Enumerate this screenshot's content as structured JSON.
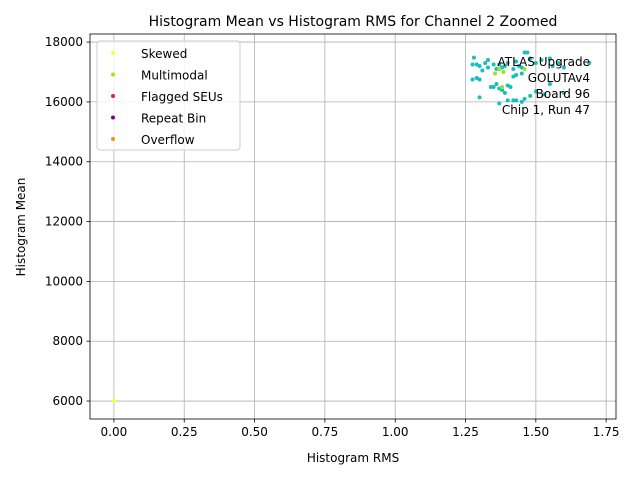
{
  "chart_data": {
    "type": "scatter",
    "title": "Histogram Mean vs Histogram RMS for Channel 2 Zoomed",
    "xlabel": "Histogram RMS",
    "ylabel": "Histogram Mean",
    "xlim": [
      -0.085,
      1.785
    ],
    "ylim": [
      5400,
      18270
    ],
    "xticks": [
      0.0,
      0.25,
      0.5,
      0.75,
      1.0,
      1.25,
      1.5,
      1.75
    ],
    "xtick_labels": [
      "0.00",
      "0.25",
      "0.50",
      "0.75",
      "1.00",
      "1.25",
      "1.50",
      "1.75"
    ],
    "yticks": [
      6000,
      8000,
      10000,
      12000,
      14000,
      16000,
      18000
    ],
    "ytick_labels": [
      "6000",
      "8000",
      "10000",
      "12000",
      "14000",
      "16000",
      "18000"
    ],
    "grid": true,
    "legend_position": "top-left",
    "annotation": {
      "lines": [
        "ATLAS Upgrade",
        "GOLUTAv4",
        "Board 96",
        "Chip 1, Run 47"
      ],
      "position": "top-right"
    },
    "legend_entries": [
      {
        "name": "Skewed",
        "color": "#ffff33"
      },
      {
        "name": "Multimodal",
        "color": "#99e61a"
      },
      {
        "name": "Flagged SEUs",
        "color": "#e6194b"
      },
      {
        "name": "Repeat Bin",
        "color": "#800080"
      },
      {
        "name": "Overflow",
        "color": "#ff8c1a"
      }
    ],
    "series": [
      {
        "color": "#17bebe",
        "points": [
          [
            1.28,
            17480
          ],
          [
            1.275,
            17250
          ],
          [
            1.29,
            17250
          ],
          [
            1.3,
            17200
          ],
          [
            1.31,
            17050
          ],
          [
            1.32,
            17300
          ],
          [
            1.33,
            17150
          ],
          [
            1.35,
            17250
          ],
          [
            1.36,
            17100
          ],
          [
            1.37,
            17250
          ],
          [
            1.38,
            17150
          ],
          [
            1.39,
            17200
          ],
          [
            1.4,
            17300
          ],
          [
            1.42,
            17100
          ],
          [
            1.43,
            17350
          ],
          [
            1.44,
            17200
          ],
          [
            1.45,
            17150
          ],
          [
            1.46,
            17650
          ],
          [
            1.47,
            17650
          ],
          [
            1.48,
            17450
          ],
          [
            1.5,
            17300
          ],
          [
            1.52,
            17400
          ],
          [
            1.55,
            17450
          ],
          [
            1.56,
            17200
          ],
          [
            1.58,
            17300
          ],
          [
            1.6,
            17150
          ],
          [
            1.69,
            17300
          ],
          [
            1.275,
            16750
          ],
          [
            1.29,
            16800
          ],
          [
            1.3,
            16750
          ],
          [
            1.34,
            16500
          ],
          [
            1.35,
            16500
          ],
          [
            1.36,
            16600
          ],
          [
            1.37,
            16450
          ],
          [
            1.38,
            16400
          ],
          [
            1.39,
            16300
          ],
          [
            1.4,
            16550
          ],
          [
            1.41,
            16500
          ],
          [
            1.42,
            16850
          ],
          [
            1.43,
            16900
          ],
          [
            1.45,
            16950
          ],
          [
            1.5,
            16350
          ],
          [
            1.55,
            16600
          ],
          [
            1.4,
            16050
          ],
          [
            1.42,
            16050
          ],
          [
            1.43,
            16050
          ],
          [
            1.45,
            16000
          ],
          [
            1.46,
            16100
          ],
          [
            1.3,
            16150
          ],
          [
            1.37,
            15950
          ],
          [
            1.48,
            16200
          ],
          [
            1.6,
            16300
          ],
          [
            1.53,
            16250
          ],
          [
            1.33,
            17400
          ]
        ]
      },
      {
        "color": "#99e61a",
        "points": [
          [
            1.355,
            16950
          ],
          [
            1.385,
            17000
          ],
          [
            1.38,
            16500
          ],
          [
            1.37,
            17100
          ],
          [
            1.46,
            17100
          ]
        ]
      },
      {
        "color": "#ffff33",
        "points": [
          [
            0.0,
            6000
          ]
        ]
      }
    ]
  }
}
